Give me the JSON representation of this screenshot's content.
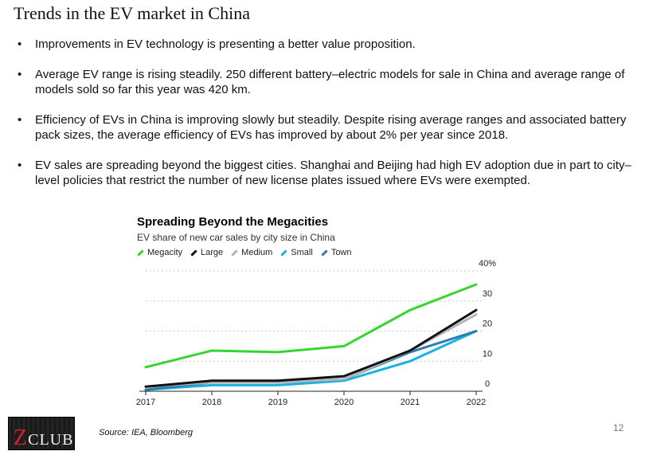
{
  "slide": {
    "title": "Trends in the EV market in China",
    "bullets": [
      {
        "symbol": "•",
        "text": "Improvements in EV technology is presenting a better value proposition."
      },
      {
        "symbol": "•",
        "text": "Average EV range is rising steadily. 250 different battery–electric models for sale in China and average range of models sold so far this year was 420 km."
      },
      {
        "symbol": "•",
        "text": "Efficiency of EVs in China is improving slowly but steadily. Despite rising average ranges and associated battery pack sizes, the average efficiency of EVs has improved by about 2% per year since 2018."
      },
      {
        "symbol": "•",
        "text": "EV sales are spreading beyond the biggest cities. Shanghai and Beijing had high EV adoption due in part to city–level policies that restrict the number of new license plates issued where EVs were exempted."
      }
    ],
    "source": "Source: IEA, Bloomberg",
    "page_number": "12",
    "logo": {
      "text": "CLUB",
      "letter": "Z"
    }
  },
  "chart_data": {
    "type": "line",
    "title": "Spreading Beyond the Megacities",
    "subtitle": "EV share of new car sales by city size in China",
    "x": [
      2017,
      2018,
      2019,
      2020,
      2021,
      2022
    ],
    "x_tick_labels": [
      "2017",
      "2018",
      "2019",
      "2020",
      "2021",
      "2022"
    ],
    "y_tick_labels": [
      "40%",
      "30",
      "20",
      "10",
      "0"
    ],
    "y_ticks": [
      40,
      30,
      20,
      10,
      0
    ],
    "ylim": [
      0,
      40
    ],
    "grid": true,
    "legend_position": "top-left",
    "series": [
      {
        "name": "Megacity",
        "color": "#35d62e",
        "values": [
          8,
          13.5,
          13,
          15,
          27,
          35.5
        ]
      },
      {
        "name": "Large",
        "color": "#111111",
        "values": [
          1.5,
          3.5,
          3.5,
          5,
          13.5,
          27
        ]
      },
      {
        "name": "Medium",
        "color": "#b5b5b5",
        "values": [
          1.5,
          3,
          3,
          4,
          13.5,
          25.5
        ]
      },
      {
        "name": "Small",
        "color": "#1ab1e6",
        "values": [
          0.5,
          2,
          2,
          3.5,
          10,
          20
        ]
      },
      {
        "name": "Town",
        "color": "#2a7bb0",
        "values": [
          0.5,
          3,
          3,
          4,
          13,
          20
        ]
      }
    ]
  }
}
